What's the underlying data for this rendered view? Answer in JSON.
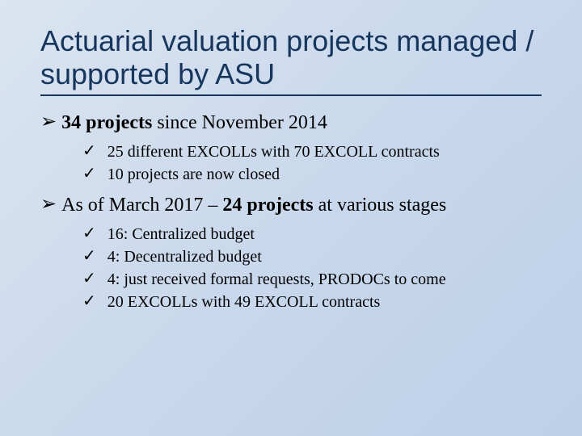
{
  "slide": {
    "background_gradient": [
      "#dbe5f1",
      "#c9d8ec",
      "#bcd0e8"
    ],
    "title": "Actuarial valuation projects managed / supported by ASU",
    "title_color": "#17365d",
    "title_fontsize": 36,
    "bullets": [
      {
        "marker": "➢",
        "segments": [
          {
            "text": "34 projects",
            "bold": true
          },
          {
            "text": " since November 2014",
            "bold": false
          }
        ],
        "subs": [
          {
            "marker": "✓",
            "text": "25 different EXCOLLs with 70 EXCOLL contracts"
          },
          {
            "marker": "✓",
            "text": "10 projects are now closed"
          }
        ]
      },
      {
        "marker": "➢",
        "segments": [
          {
            "text": "As of March 2017 – ",
            "bold": false
          },
          {
            "text": "24 projects",
            "bold": true
          },
          {
            "text": " at various stages",
            "bold": false
          }
        ],
        "subs": [
          {
            "marker": "✓",
            "text": "16: Centralized budget"
          },
          {
            "marker": "✓",
            "text": "4: Decentralized budget"
          },
          {
            "marker": "✓",
            "text": "4: just received formal requests, PRODOCs to come"
          },
          {
            "marker": "✓",
            "text": "20 EXCOLLs with 49 EXCOLL contracts"
          }
        ]
      }
    ],
    "bullet_fontsize": 24,
    "sub_bullet_fontsize": 20
  }
}
